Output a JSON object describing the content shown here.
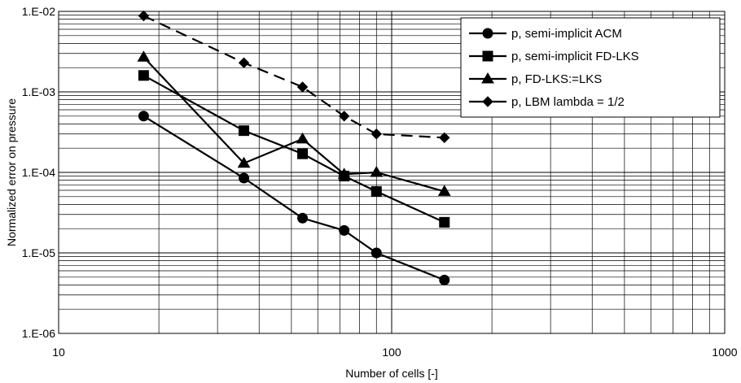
{
  "chart_data": {
    "type": "line",
    "x_scale": "log",
    "y_scale": "log",
    "xlim": [
      10,
      1000
    ],
    "ylim": [
      1e-06,
      0.01
    ],
    "xlabel": "Number of cells [-]",
    "ylabel": "Normalized error on pressure",
    "x_ticks": [
      {
        "value": 10,
        "label": "10"
      },
      {
        "value": 100,
        "label": "100"
      },
      {
        "value": 1000,
        "label": "1000"
      }
    ],
    "y_ticks": [
      {
        "value": 1e-06,
        "label": "1.E-06"
      },
      {
        "value": 1e-05,
        "label": "1.E-05"
      },
      {
        "value": 0.0001,
        "label": "1.E-04"
      },
      {
        "value": 0.001,
        "label": "1.E-03"
      },
      {
        "value": 0.01,
        "label": "1.E-02"
      }
    ],
    "grid": true,
    "legend_position": "top-right",
    "series": [
      {
        "name": "p, semi-implicit ACM",
        "marker": "circle",
        "line_style": "solid",
        "x": [
          18,
          36,
          54,
          72,
          90,
          144
        ],
        "y": [
          0.0005,
          8.5e-05,
          2.7e-05,
          1.9e-05,
          1e-05,
          4.6e-06
        ]
      },
      {
        "name": "p, semi-implicit FD-LKS",
        "marker": "square",
        "line_style": "solid",
        "x": [
          18,
          36,
          54,
          72,
          90,
          144
        ],
        "y": [
          0.0016,
          0.00033,
          0.00017,
          9e-05,
          5.8e-05,
          2.4e-05
        ]
      },
      {
        "name": "p, FD-LKS:=LKS",
        "marker": "triangle",
        "line_style": "solid",
        "x": [
          18,
          36,
          54,
          72,
          90,
          144
        ],
        "y": [
          0.0027,
          0.00013,
          0.00026,
          9.5e-05,
          0.0001,
          5.8e-05
        ]
      },
      {
        "name": "p, LBM  lambda = 1/2",
        "marker": "diamond",
        "line_style": "dashed",
        "x": [
          18,
          36,
          54,
          72,
          90,
          144
        ],
        "y": [
          0.0088,
          0.0023,
          0.00115,
          0.0005,
          0.0003,
          0.00027
        ]
      }
    ]
  }
}
